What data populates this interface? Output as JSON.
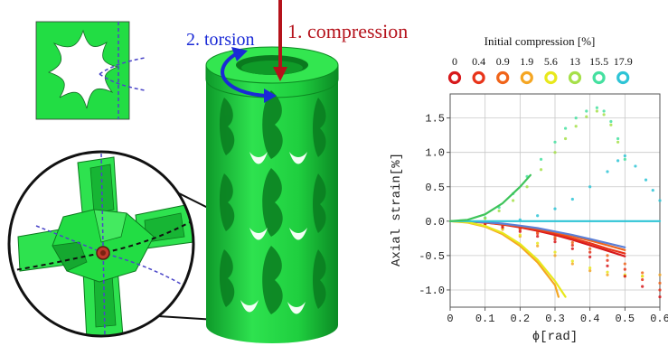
{
  "labels": {
    "compression": "1. compression",
    "torsion": "2. torsion"
  },
  "colors": {
    "green": "#22dd44",
    "green_dark": "#0c8a22",
    "compression_arrow": "#b5121b",
    "torsion_arrow": "#1a2ad6",
    "axis_dash_blue": "#4a45c8"
  },
  "legend": {
    "title": "Initial compression [%]",
    "entries": [
      {
        "label": "0",
        "color": "#d7191c"
      },
      {
        "label": "0.4",
        "color": "#e8341a"
      },
      {
        "label": "0.9",
        "color": "#f0641a"
      },
      {
        "label": "1.9",
        "color": "#f5a623"
      },
      {
        "label": "5.6",
        "color": "#e8e81c"
      },
      {
        "label": "13",
        "color": "#a6e04a"
      },
      {
        "label": "15.5",
        "color": "#45e0a0"
      },
      {
        "label": "17.9",
        "color": "#2ec4d6"
      }
    ]
  },
  "chart_data": {
    "type": "line",
    "xlabel": "ϕ[rad]",
    "ylabel": "Axial strain[%]",
    "xlim": [
      0,
      0.6
    ],
    "ylim": [
      -1.25,
      1.85
    ],
    "grid": true,
    "x_ticks": [
      "0",
      "0.1",
      "0.2",
      "0.3",
      "0.4",
      "0.5",
      "0.6"
    ],
    "y_ticks": [
      "-1.0",
      "-0.5",
      "0.0",
      "0.5",
      "1.0",
      "1.5"
    ],
    "x_tick_values": [
      0,
      0.1,
      0.2,
      0.3,
      0.4,
      0.5,
      0.6
    ],
    "y_tick_values": [
      -1.0,
      -0.5,
      0.0,
      0.5,
      1.0,
      1.5
    ],
    "series": [
      {
        "color": "#d7191c",
        "kind": "line",
        "x": [
          0,
          0.05,
          0.1,
          0.15,
          0.2,
          0.25,
          0.3,
          0.35,
          0.4,
          0.45,
          0.5
        ],
        "y": [
          0,
          -0.005,
          -0.02,
          -0.05,
          -0.09,
          -0.14,
          -0.2,
          -0.27,
          -0.35,
          -0.43,
          -0.51
        ]
      },
      {
        "color": "#e8341a",
        "kind": "line",
        "x": [
          0,
          0.05,
          0.1,
          0.15,
          0.2,
          0.25,
          0.3,
          0.35,
          0.4,
          0.45,
          0.5
        ],
        "y": [
          0,
          -0.005,
          -0.02,
          -0.045,
          -0.08,
          -0.13,
          -0.18,
          -0.25,
          -0.32,
          -0.4,
          -0.47
        ]
      },
      {
        "color": "#f0641a",
        "kind": "line",
        "x": [
          0,
          0.05,
          0.1,
          0.15,
          0.2,
          0.25,
          0.3,
          0.35,
          0.4,
          0.45,
          0.5
        ],
        "y": [
          0,
          -0.004,
          -0.018,
          -0.04,
          -0.07,
          -0.11,
          -0.16,
          -0.22,
          -0.28,
          -0.35,
          -0.42
        ]
      },
      {
        "color": "#5b7fd6",
        "kind": "line",
        "x": [
          0,
          0.05,
          0.1,
          0.15,
          0.2,
          0.25,
          0.3,
          0.35,
          0.4,
          0.45,
          0.5
        ],
        "y": [
          0,
          -0.004,
          -0.015,
          -0.035,
          -0.065,
          -0.1,
          -0.15,
          -0.2,
          -0.26,
          -0.32,
          -0.38
        ]
      },
      {
        "color": "#f5a623",
        "kind": "line",
        "x": [
          0,
          0.05,
          0.1,
          0.15,
          0.2,
          0.25,
          0.3,
          0.31
        ],
        "y": [
          0,
          -0.02,
          -0.08,
          -0.19,
          -0.36,
          -0.6,
          -0.93,
          -1.1
        ]
      },
      {
        "color": "#e8e81c",
        "kind": "line",
        "x": [
          0,
          0.05,
          0.1,
          0.15,
          0.2,
          0.25,
          0.3,
          0.33
        ],
        "y": [
          0,
          -0.015,
          -0.07,
          -0.17,
          -0.33,
          -0.56,
          -0.87,
          -1.1
        ]
      },
      {
        "color": "#2ec4d6",
        "kind": "line",
        "x": [
          0,
          0.1,
          0.2,
          0.3,
          0.4,
          0.5,
          0.6
        ],
        "y": [
          0,
          0,
          0,
          0,
          0,
          0,
          0
        ]
      },
      {
        "color": "#3ec45a",
        "kind": "line",
        "x": [
          0,
          0.05,
          0.1,
          0.15,
          0.2,
          0.23
        ],
        "y": [
          0,
          0.02,
          0.1,
          0.26,
          0.5,
          0.67
        ]
      },
      {
        "color": "#45e0a0",
        "kind": "dots",
        "x": [
          0.1,
          0.14,
          0.18,
          0.22,
          0.26,
          0.3,
          0.33,
          0.36,
          0.39,
          0.42,
          0.44,
          0.46,
          0.48,
          0.5
        ],
        "y": [
          0.05,
          0.2,
          0.4,
          0.65,
          0.9,
          1.15,
          1.35,
          1.5,
          1.6,
          1.65,
          1.6,
          1.45,
          1.2,
          0.9
        ]
      },
      {
        "color": "#a6e04a",
        "kind": "dots",
        "x": [
          0.1,
          0.14,
          0.18,
          0.22,
          0.26,
          0.3,
          0.33,
          0.36,
          0.39,
          0.42,
          0.44,
          0.46,
          0.48
        ],
        "y": [
          0.04,
          0.15,
          0.3,
          0.5,
          0.75,
          1.0,
          1.2,
          1.38,
          1.52,
          1.6,
          1.55,
          1.4,
          1.15
        ]
      },
      {
        "color": "#2ec4d6",
        "kind": "dots",
        "x": [
          0.2,
          0.25,
          0.3,
          0.35,
          0.4,
          0.45,
          0.48,
          0.5,
          0.53,
          0.56,
          0.58,
          0.6
        ],
        "y": [
          0.02,
          0.08,
          0.18,
          0.32,
          0.5,
          0.72,
          0.88,
          0.95,
          0.8,
          0.6,
          0.45,
          0.3
        ]
      },
      {
        "color": "#f5a623",
        "kind": "dots",
        "x": [
          0.05,
          0.1,
          0.15,
          0.2,
          0.25,
          0.3,
          0.35,
          0.4,
          0.45,
          0.5,
          0.55,
          0.6
        ],
        "y": [
          -0.01,
          -0.05,
          -0.12,
          -0.22,
          -0.36,
          -0.5,
          -0.62,
          -0.72,
          -0.78,
          -0.8,
          -0.8,
          -0.78
        ]
      },
      {
        "color": "#e8e81c",
        "kind": "dots",
        "x": [
          0.05,
          0.1,
          0.15,
          0.2,
          0.25,
          0.3,
          0.35,
          0.4,
          0.45,
          0.5,
          0.55
        ],
        "y": [
          -0.01,
          -0.04,
          -0.1,
          -0.2,
          -0.32,
          -0.45,
          -0.58,
          -0.68,
          -0.74,
          -0.78,
          -0.8
        ]
      },
      {
        "color": "#e8341a",
        "kind": "dots",
        "x": [
          0.05,
          0.1,
          0.15,
          0.2,
          0.25,
          0.3,
          0.35,
          0.4,
          0.45,
          0.5,
          0.55,
          0.6
        ],
        "y": [
          -0.01,
          -0.03,
          -0.07,
          -0.12,
          -0.18,
          -0.26,
          -0.35,
          -0.45,
          -0.57,
          -0.7,
          -0.85,
          -1.0
        ]
      },
      {
        "color": "#f0641a",
        "kind": "dots",
        "x": [
          0.05,
          0.1,
          0.15,
          0.2,
          0.25,
          0.3,
          0.35,
          0.4,
          0.45,
          0.5,
          0.55,
          0.6
        ],
        "y": [
          -0.01,
          -0.025,
          -0.06,
          -0.1,
          -0.16,
          -0.23,
          -0.31,
          -0.4,
          -0.5,
          -0.62,
          -0.75,
          -0.9
        ]
      },
      {
        "color": "#d7191c",
        "kind": "dots",
        "x": [
          0.1,
          0.15,
          0.2,
          0.25,
          0.3,
          0.35,
          0.4,
          0.45,
          0.5,
          0.55,
          0.6
        ],
        "y": [
          -0.04,
          -0.09,
          -0.15,
          -0.22,
          -0.3,
          -0.4,
          -0.52,
          -0.65,
          -0.8,
          -0.95,
          -1.1
        ]
      }
    ]
  }
}
